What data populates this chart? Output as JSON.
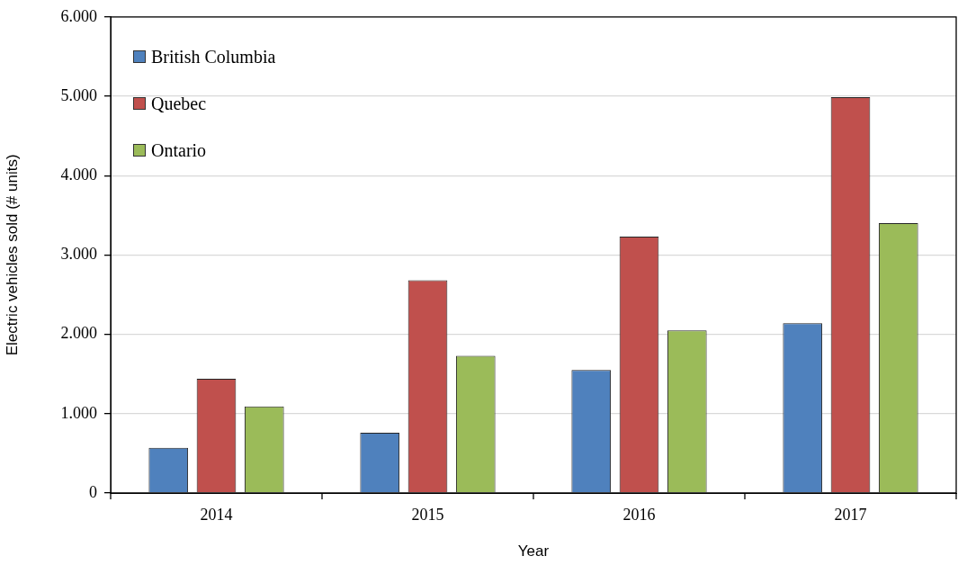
{
  "chart_data": {
    "type": "bar",
    "xlabel": "Year",
    "ylabel": "Electric vehicles sold (# units)",
    "categories": [
      "2014",
      "2015",
      "2016",
      "2017"
    ],
    "series": [
      {
        "name": "British Columbia",
        "color": "#4f81bd",
        "values": [
          570,
          760,
          1550,
          2140
        ]
      },
      {
        "name": "Quebec",
        "color": "#c0504d",
        "values": [
          1440,
          2680,
          3230,
          4990
        ]
      },
      {
        "name": "Ontario",
        "color": "#9bbb59",
        "values": [
          1090,
          1730,
          2050,
          3400
        ]
      }
    ],
    "ylim": [
      0,
      6000
    ],
    "yticks": [
      {
        "value": 0,
        "label": "0"
      },
      {
        "value": 1000,
        "label": "1.000"
      },
      {
        "value": 2000,
        "label": "2.000"
      },
      {
        "value": 3000,
        "label": "3.000"
      },
      {
        "value": 4000,
        "label": "4.000"
      },
      {
        "value": 5000,
        "label": "5.000"
      },
      {
        "value": 6000,
        "label": "6.000"
      }
    ],
    "grid": "y",
    "legend": "top left"
  }
}
